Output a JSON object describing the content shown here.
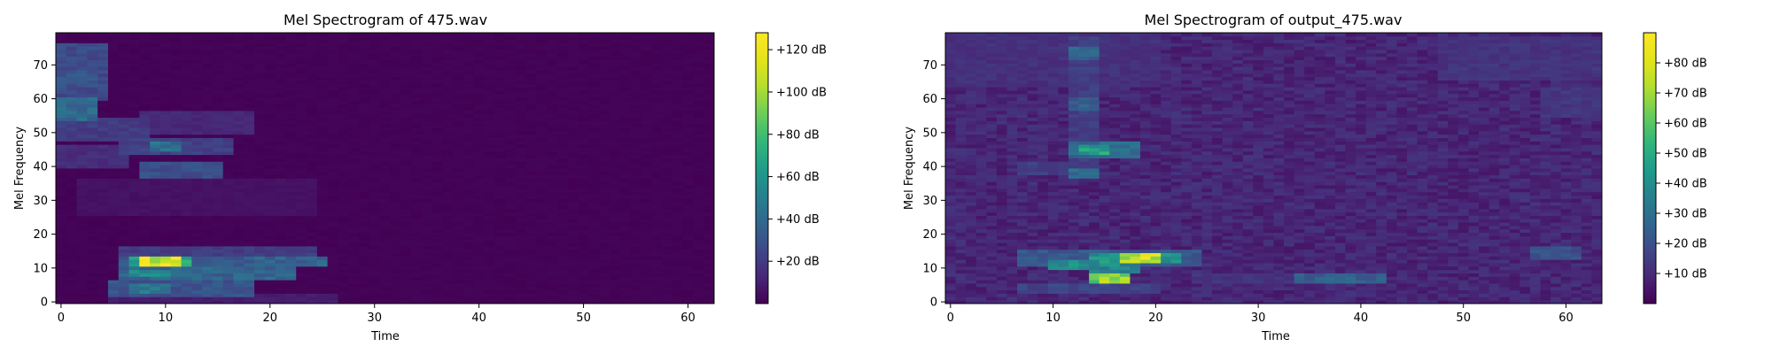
{
  "colors": {
    "background": "#ffffff",
    "axes": "#000000",
    "colormap": "viridis",
    "cmap_low": "#440154",
    "cmap_high": "#fde725"
  },
  "chart_data": [
    {
      "type": "heatmap",
      "title": "Mel Spectrogram of 475.wav",
      "xlabel": "Time",
      "ylabel": "Mel Frequency",
      "xlim": [
        -0.5,
        62.5
      ],
      "ylim": [
        -0.5,
        79.5
      ],
      "xticks": [
        0,
        10,
        20,
        30,
        40,
        50,
        60
      ],
      "yticks": [
        0,
        10,
        20,
        30,
        40,
        50,
        60,
        70
      ],
      "colorbar": {
        "range": [
          0,
          128
        ],
        "ticks": [
          20,
          40,
          60,
          80,
          100,
          120
        ],
        "tick_labels": [
          "+20 dB",
          "+40 dB",
          "+60 dB",
          "+80 dB",
          "+100 dB",
          "+120 dB"
        ]
      },
      "n_frames": 63,
      "n_mels": 80,
      "background_level": 0,
      "features": [
        {
          "t0": 0,
          "t1": 4,
          "f0": 60,
          "f1": 76,
          "level": 28
        },
        {
          "t0": 0,
          "t1": 3,
          "f0": 54,
          "f1": 60,
          "level": 42
        },
        {
          "t0": 0,
          "t1": 3,
          "f0": 64,
          "f1": 68,
          "level": 32
        },
        {
          "t0": 0,
          "t1": 8,
          "f0": 48,
          "f1": 54,
          "level": 22
        },
        {
          "t0": 0,
          "t1": 6,
          "f0": 40,
          "f1": 46,
          "level": 16
        },
        {
          "t0": 8,
          "t1": 18,
          "f0": 50,
          "f1": 56,
          "level": 14
        },
        {
          "t0": 6,
          "t1": 16,
          "f0": 44,
          "f1": 48,
          "level": 24
        },
        {
          "t0": 9,
          "t1": 11,
          "f0": 45,
          "f1": 47,
          "level": 45
        },
        {
          "t0": 8,
          "t1": 15,
          "f0": 37,
          "f1": 41,
          "level": 30
        },
        {
          "t0": 2,
          "t1": 24,
          "f0": 26,
          "f1": 36,
          "level": 6
        },
        {
          "t0": 6,
          "t1": 24,
          "f0": 13,
          "f1": 16,
          "level": 22
        },
        {
          "t0": 6,
          "t1": 24,
          "f0": 11,
          "f1": 13,
          "level": 36
        },
        {
          "t0": 8,
          "t1": 11,
          "f0": 11,
          "f1": 13,
          "level": 124
        },
        {
          "t0": 7,
          "t1": 12,
          "f0": 11,
          "f1": 13,
          "level": 70
        },
        {
          "t0": 6,
          "t1": 22,
          "f0": 7,
          "f1": 10,
          "level": 40
        },
        {
          "t0": 7,
          "t1": 10,
          "f0": 8,
          "f1": 9,
          "level": 58
        },
        {
          "t0": 5,
          "t1": 18,
          "f0": 2,
          "f1": 6,
          "level": 32
        },
        {
          "t0": 7,
          "t1": 10,
          "f0": 3,
          "f1": 5,
          "level": 52
        },
        {
          "t0": 5,
          "t1": 26,
          "f0": 0,
          "f1": 2,
          "level": 10
        },
        {
          "t0": 19,
          "t1": 25,
          "f0": 11,
          "f1": 13,
          "level": 40
        }
      ]
    },
    {
      "type": "heatmap",
      "title": "Mel Spectrogram of output_475.wav",
      "xlabel": "Time",
      "ylabel": "Mel Frequency",
      "xlim": [
        -0.5,
        63.5
      ],
      "ylim": [
        -0.5,
        79.5
      ],
      "xticks": [
        0,
        10,
        20,
        30,
        40,
        50,
        60
      ],
      "yticks": [
        0,
        10,
        20,
        30,
        40,
        50,
        60,
        70
      ],
      "colorbar": {
        "range": [
          0,
          90
        ],
        "ticks": [
          10,
          20,
          30,
          40,
          50,
          60,
          70,
          80
        ],
        "tick_labels": [
          "+10 dB",
          "+20 dB",
          "+30 dB",
          "+40 dB",
          "+50 dB",
          "+60 dB",
          "+70 dB",
          "+80 dB"
        ]
      },
      "n_frames": 64,
      "n_mels": 80,
      "background_level": 7,
      "features": [
        {
          "t0": 12,
          "t1": 14,
          "f0": 40,
          "f1": 78,
          "level": 16
        },
        {
          "t0": 12,
          "t1": 14,
          "f0": 72,
          "f1": 75,
          "level": 28
        },
        {
          "t0": 12,
          "t1": 14,
          "f0": 57,
          "f1": 60,
          "level": 26
        },
        {
          "t0": 12,
          "t1": 18,
          "f0": 43,
          "f1": 47,
          "level": 30
        },
        {
          "t0": 13,
          "t1": 15,
          "f0": 44,
          "f1": 46,
          "level": 50
        },
        {
          "t0": 12,
          "t1": 14,
          "f0": 37,
          "f1": 39,
          "level": 32
        },
        {
          "t0": 7,
          "t1": 12,
          "f0": 38,
          "f1": 41,
          "level": 16
        },
        {
          "t0": 7,
          "t1": 24,
          "f0": 11,
          "f1": 15,
          "level": 24
        },
        {
          "t0": 14,
          "t1": 22,
          "f0": 12,
          "f1": 14,
          "level": 44
        },
        {
          "t0": 17,
          "t1": 20,
          "f0": 12,
          "f1": 14,
          "level": 82
        },
        {
          "t0": 10,
          "t1": 13,
          "f0": 10,
          "f1": 12,
          "level": 42
        },
        {
          "t0": 14,
          "t1": 18,
          "f0": 9,
          "f1": 11,
          "level": 40
        },
        {
          "t0": 14,
          "t1": 17,
          "f0": 6,
          "f1": 8,
          "level": 72
        },
        {
          "t0": 7,
          "t1": 20,
          "f0": 3,
          "f1": 5,
          "level": 18
        },
        {
          "t0": 34,
          "t1": 42,
          "f0": 6,
          "f1": 8,
          "level": 26
        },
        {
          "t0": 24,
          "t1": 34,
          "f0": 6,
          "f1": 8,
          "level": 13
        },
        {
          "t0": 57,
          "t1": 61,
          "f0": 13,
          "f1": 16,
          "level": 22
        },
        {
          "t0": 48,
          "t1": 63,
          "f0": 66,
          "f1": 78,
          "level": 13
        },
        {
          "t0": 0,
          "t1": 20,
          "f0": 64,
          "f1": 79,
          "level": 12
        },
        {
          "t0": 58,
          "t1": 63,
          "f0": 55,
          "f1": 63,
          "level": 14
        }
      ]
    }
  ]
}
